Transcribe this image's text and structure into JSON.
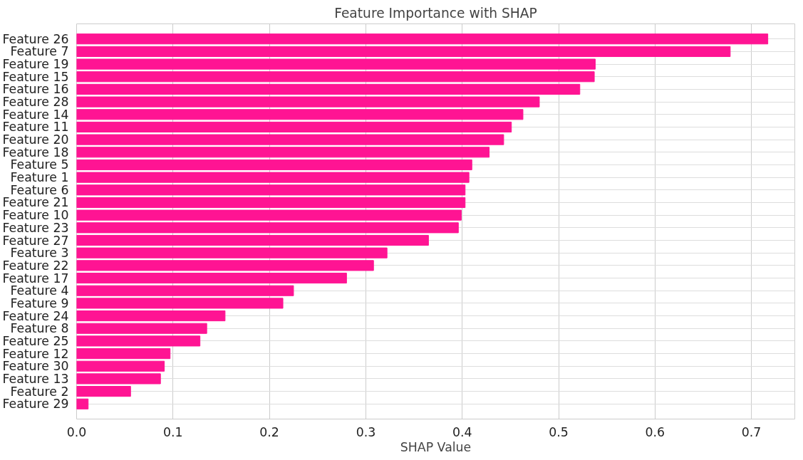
{
  "chart_data": {
    "type": "bar",
    "orientation": "horizontal",
    "title": "Feature Importance with SHAP",
    "xlabel": "SHAP Value",
    "categories": [
      "Feature 26",
      "Feature 7",
      "Feature 19",
      "Feature 15",
      "Feature 16",
      "Feature 28",
      "Feature 14",
      "Feature 11",
      "Feature 20",
      "Feature 18",
      "Feature 5",
      "Feature 1",
      "Feature 6",
      "Feature 21",
      "Feature 10",
      "Feature 23",
      "Feature 27",
      "Feature 3",
      "Feature 22",
      "Feature 17",
      "Feature 4",
      "Feature 9",
      "Feature 24",
      "Feature 8",
      "Feature 25",
      "Feature 12",
      "Feature 30",
      "Feature 13",
      "Feature 2",
      "Feature 29"
    ],
    "values": [
      0.717,
      0.678,
      0.538,
      0.537,
      0.522,
      0.48,
      0.463,
      0.451,
      0.443,
      0.428,
      0.41,
      0.407,
      0.403,
      0.403,
      0.399,
      0.396,
      0.365,
      0.322,
      0.308,
      0.28,
      0.225,
      0.214,
      0.154,
      0.135,
      0.128,
      0.097,
      0.091,
      0.087,
      0.056,
      0.012
    ],
    "color": "#ff1493",
    "xlim": [
      0,
      0.745
    ],
    "xticks": [
      {
        "value": 0,
        "label": "0.0"
      },
      0.1,
      0.2,
      0.3,
      0.4,
      0.5,
      0.6,
      0.7
    ],
    "grid": true
  }
}
